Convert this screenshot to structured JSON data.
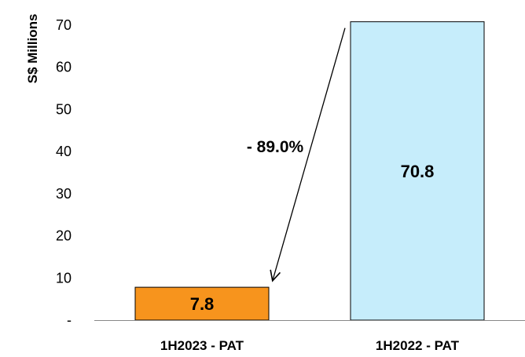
{
  "chart_data": {
    "type": "bar",
    "categories": [
      "1H2023 - PAT",
      "1H2022 - PAT"
    ],
    "values": [
      7.8,
      70.8
    ],
    "data_labels": [
      "7.8",
      "70.8"
    ],
    "colors": [
      "#F7941D",
      "#C6EDFB"
    ],
    "ylabel": "S$ Millions",
    "ylim": [
      0,
      70
    ],
    "yticks": [
      {
        "value": 0,
        "label": "-"
      },
      {
        "value": 10,
        "label": "10"
      },
      {
        "value": 20,
        "label": "20"
      },
      {
        "value": 30,
        "label": "30"
      },
      {
        "value": 40,
        "label": "40"
      },
      {
        "value": 50,
        "label": "50"
      },
      {
        "value": 60,
        "label": "60"
      },
      {
        "value": 70,
        "label": "70"
      }
    ],
    "grid": false,
    "annotation": {
      "text": "- 89.0%",
      "from_category": "1H2022 - PAT",
      "to_category": "1H2023 - PAT"
    }
  }
}
